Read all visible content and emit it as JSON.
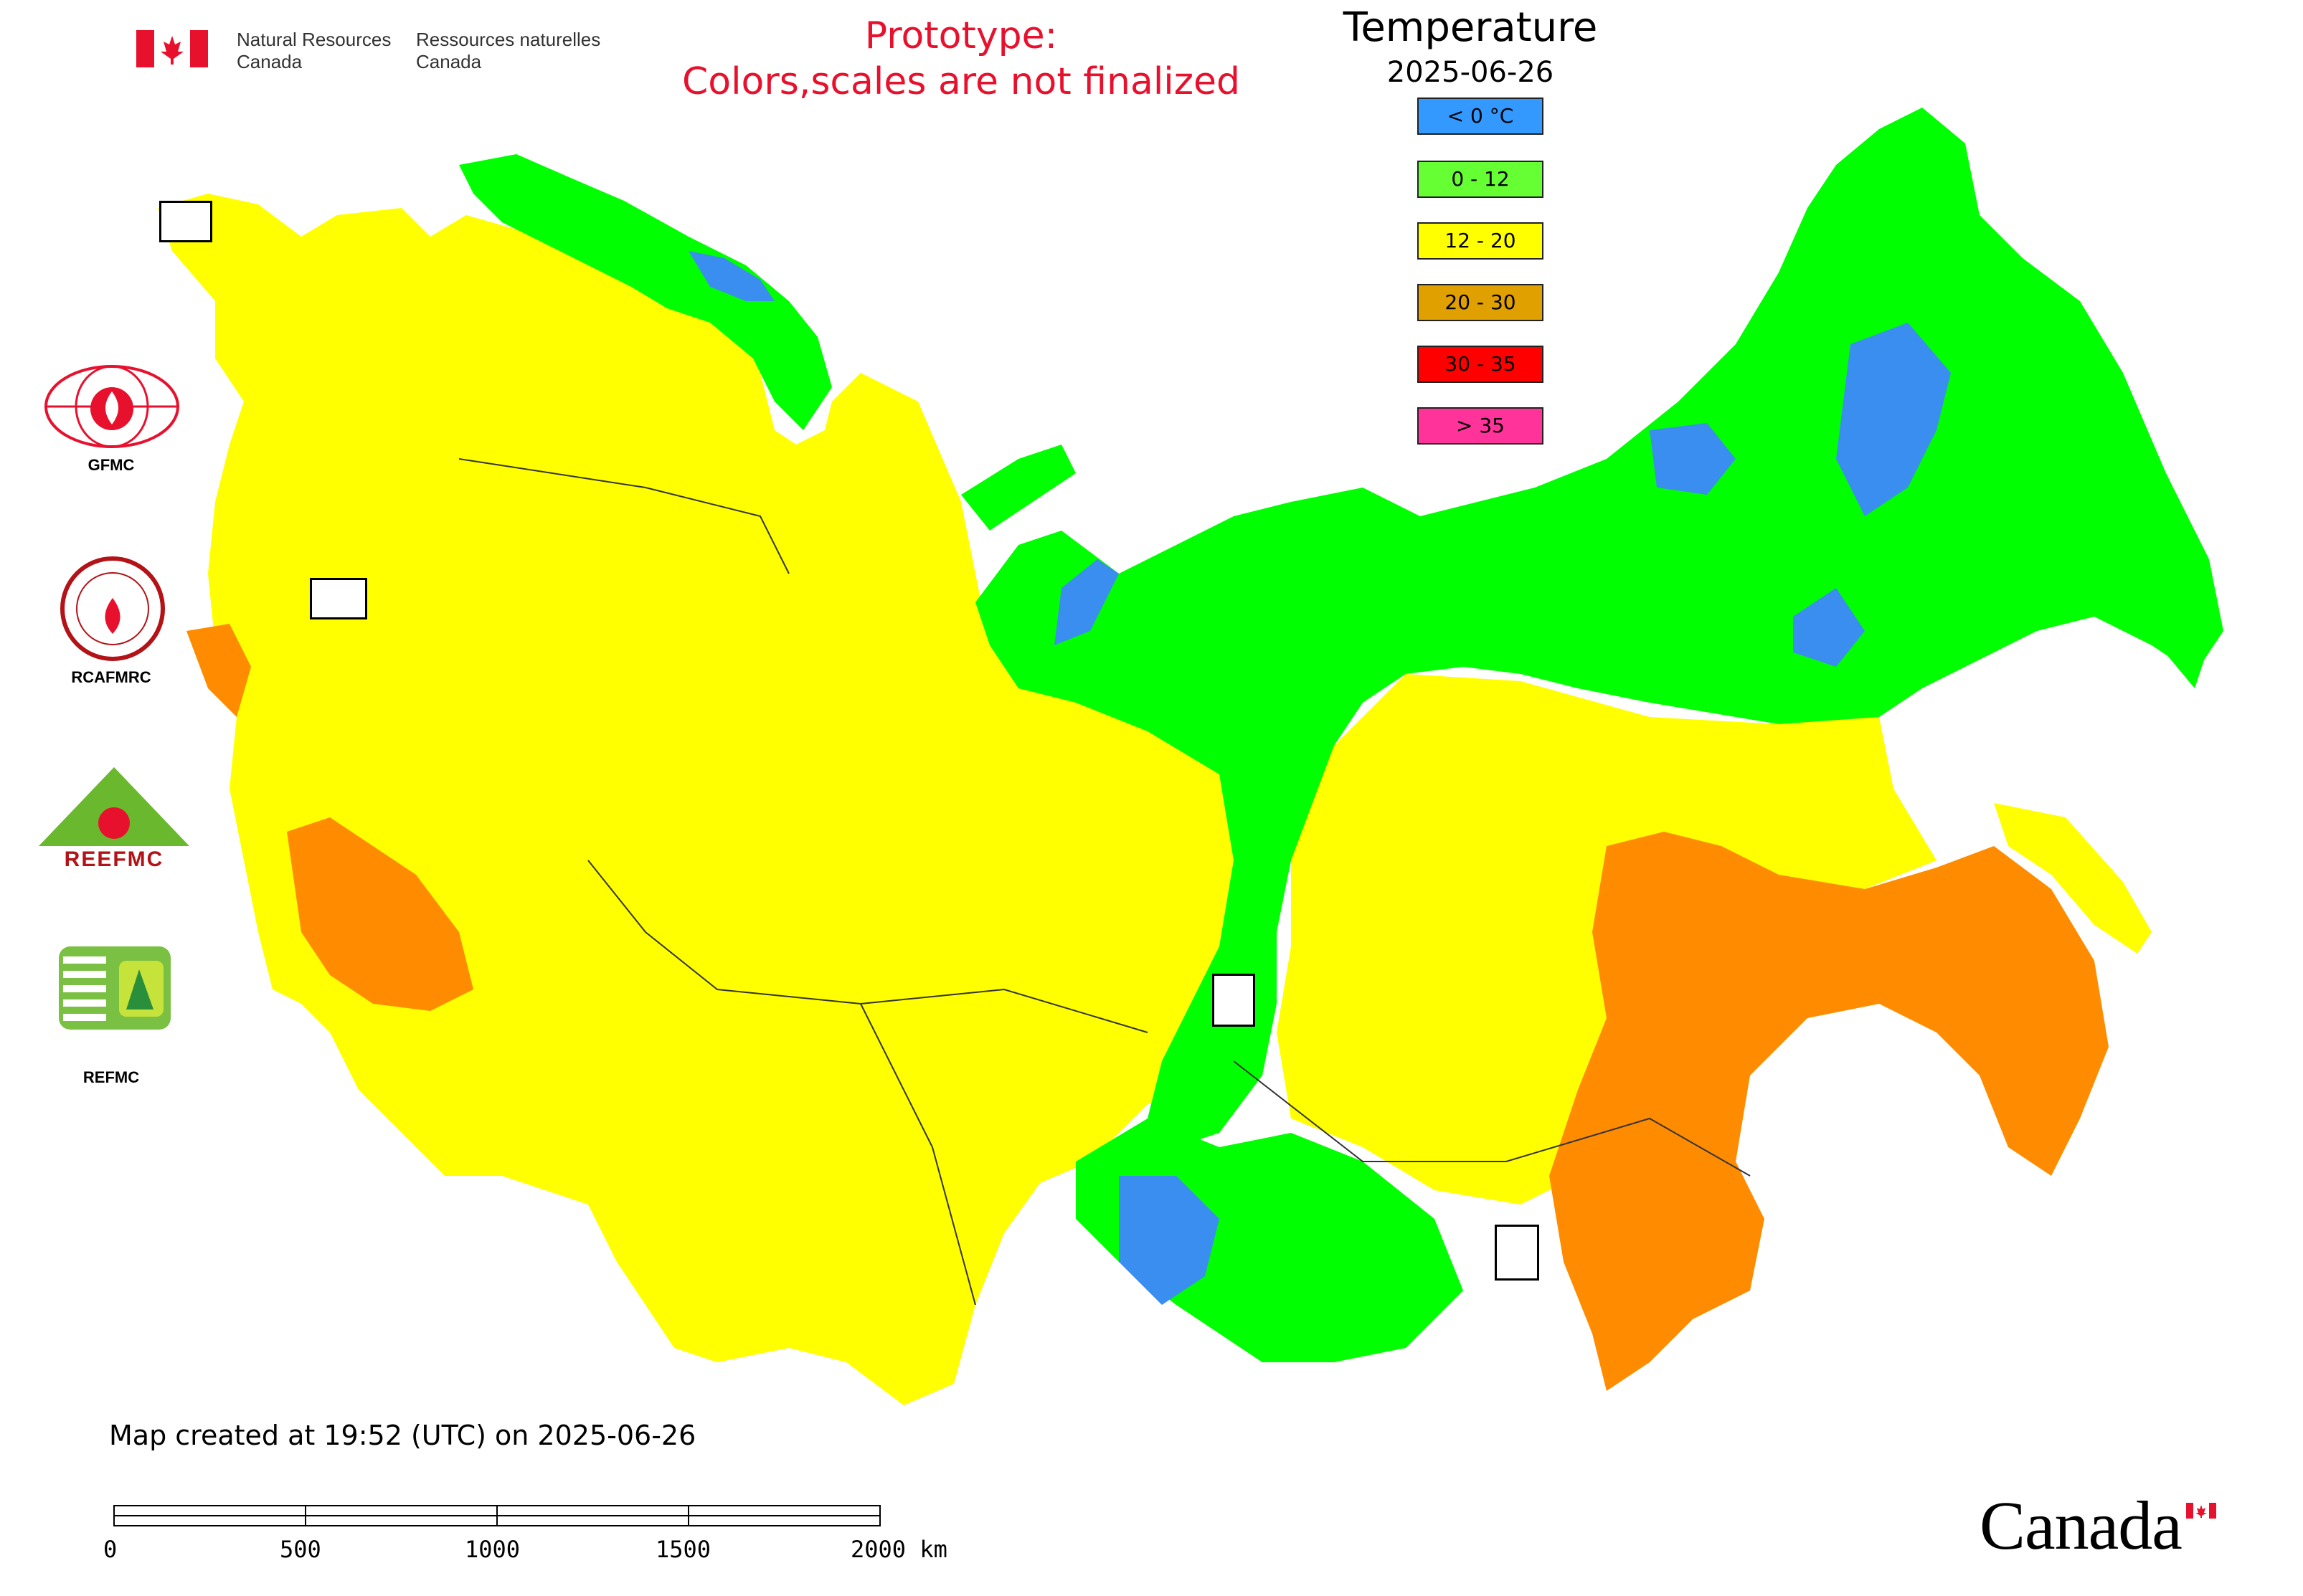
{
  "header": {
    "org_en_line1": "Natural Resources",
    "org_en_line2": "Canada",
    "org_fr_line1": "Ressources naturelles",
    "org_fr_line2": "Canada",
    "prototype_line1": "Prototype:",
    "prototype_line2": "Colors,scales are not finalized"
  },
  "legend": {
    "title": "Temperature",
    "date": "2025-06-26",
    "items": [
      {
        "label": "< 0 °C",
        "color": "#3399ff"
      },
      {
        "label": "0 - 12",
        "color": "#66ff33"
      },
      {
        "label": "12 - 20",
        "color": "#ffff00"
      },
      {
        "label": "20 - 30",
        "color": "#e0a000"
      },
      {
        "label": "30 - 35",
        "color": "#ff0000"
      },
      {
        "label": "> 35",
        "color": "#ff3399"
      }
    ]
  },
  "logos": {
    "gfmc": "GFMC",
    "rcafmrc": "RCAFMRC",
    "reefmc": "REEFMC",
    "refmc": "REFMC",
    "reefmc_wordmark": "REEFMC"
  },
  "credit": "Map created at 19:52 (UTC) on 2025-06-26",
  "scale_bar": {
    "labels": [
      "0",
      "500",
      "1000",
      "1500",
      "2000 km"
    ]
  },
  "wordmark": "Canada",
  "map_colors": {
    "below_zero": "#3a8ef0",
    "cool": "#00ff00",
    "mild": "#ffff00",
    "warm": "#ff8c00"
  }
}
